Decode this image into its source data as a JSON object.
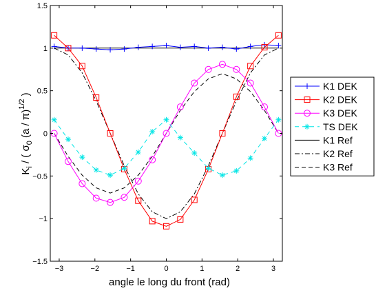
{
  "chart_data": {
    "type": "line",
    "xlabel": "angle le long du front (rad)",
    "ylabel": {
      "prefix": "K",
      "sub_i": "i",
      "middle": " / ( σ",
      "sub_0": "0",
      "paren": " (a / π)",
      "sup": "1/2",
      "suffix": " )"
    },
    "xlim": [
      -3.25,
      3.25
    ],
    "ylim": [
      -1.5,
      1.5
    ],
    "xticks": [
      -3,
      -2,
      -1,
      0,
      1,
      2,
      3
    ],
    "xtick_labels": [
      "−3",
      "−2",
      "−1",
      "0",
      "1",
      "2",
      "3"
    ],
    "yticks": [
      -1.5,
      -1,
      -0.5,
      0,
      0.5,
      1,
      1.5
    ],
    "ytick_labels": [
      "−1.5",
      "−1",
      "−0.5",
      "0",
      "0.5",
      "1",
      "1.5"
    ],
    "grid": false,
    "legend_position": "outside-right",
    "x": [
      -3.1416,
      -2.7489,
      -2.3562,
      -1.9635,
      -1.5708,
      -1.1781,
      -0.7854,
      -0.3927,
      0.0,
      0.3927,
      0.7854,
      1.1781,
      1.5708,
      1.9635,
      2.3562,
      2.7489,
      3.1416
    ],
    "series": [
      {
        "name": "K1 DEK",
        "marker": "plus",
        "color": "#0000ff",
        "dash": "",
        "values": [
          1.02,
          1.0,
          1.0,
          0.99,
          0.98,
          0.99,
          1.01,
          1.02,
          1.03,
          1.01,
          1.02,
          1.0,
          1.01,
          0.99,
          1.02,
          1.04,
          1.03
        ]
      },
      {
        "name": "K2 DEK",
        "marker": "square",
        "color": "#ff0000",
        "dash": "",
        "values": [
          1.15,
          1.0,
          0.79,
          0.42,
          0.0,
          -0.42,
          -0.79,
          -1.03,
          -1.09,
          -1.01,
          -0.78,
          -0.42,
          0.0,
          0.43,
          0.79,
          1.01,
          1.15
        ]
      },
      {
        "name": "K3 DEK",
        "marker": "circle",
        "color": "#ff00ff",
        "dash": "",
        "values": [
          0.0,
          -0.33,
          -0.59,
          -0.76,
          -0.81,
          -0.75,
          -0.56,
          -0.31,
          0.0,
          0.31,
          0.59,
          0.75,
          0.81,
          0.75,
          0.59,
          0.31,
          0.0
        ]
      },
      {
        "name": "TS DEK",
        "marker": "asterisk",
        "color": "#00e5e5",
        "dash": "6,5",
        "values": [
          0.16,
          -0.07,
          -0.28,
          -0.43,
          -0.49,
          -0.41,
          -0.22,
          0.02,
          0.16,
          -0.05,
          -0.23,
          -0.41,
          -0.49,
          -0.44,
          -0.29,
          -0.06,
          0.16
        ]
      },
      {
        "name": "K1 Ref",
        "marker": "none",
        "color": "#000000",
        "dash": "",
        "values": [
          1.0,
          1.0,
          1.0,
          1.0,
          1.0,
          1.0,
          1.0,
          1.0,
          1.0,
          1.0,
          1.0,
          1.0,
          1.0,
          1.0,
          1.0,
          1.0,
          1.0
        ]
      },
      {
        "name": "K2 Ref",
        "marker": "none",
        "color": "#000000",
        "dash": "7,3,2,3",
        "values": [
          1.0,
          0.92,
          0.71,
          0.38,
          0.0,
          -0.38,
          -0.71,
          -0.92,
          -1.0,
          -0.92,
          -0.71,
          -0.38,
          0.0,
          0.38,
          0.71,
          0.92,
          1.0
        ]
      },
      {
        "name": "K3 Ref",
        "marker": "none",
        "color": "#000000",
        "dash": "6,4",
        "values": [
          0.0,
          -0.27,
          -0.49,
          -0.64,
          -0.7,
          -0.64,
          -0.49,
          -0.27,
          0.0,
          0.27,
          0.49,
          0.64,
          0.7,
          0.64,
          0.49,
          0.27,
          0.0
        ]
      }
    ]
  }
}
